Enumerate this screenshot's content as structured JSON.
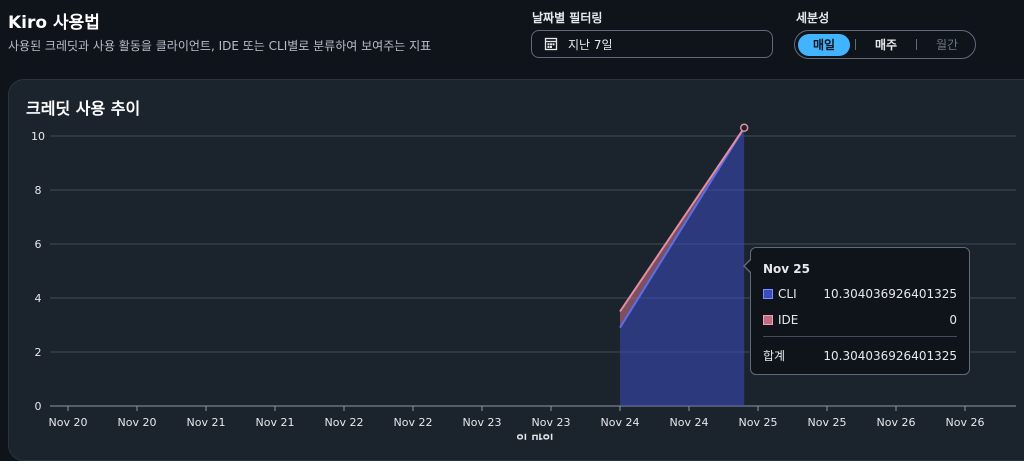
{
  "header": {
    "title": "Kiro 사용법",
    "subtitle": "사용된 크레딧과 사용 활동을 클라이언트, IDE 또는 CLI별로 분류하여 보여주는 지표"
  },
  "date_filter": {
    "label": "날짜별 필터링",
    "value": "지난 7일"
  },
  "granularity": {
    "label": "세분성",
    "options": [
      "매일",
      "매주",
      "월간"
    ],
    "selected": "매일"
  },
  "panel": {
    "title": "크레딧 사용 추이"
  },
  "colors": {
    "cli": "#3b4cc0",
    "ide": "#c06d82",
    "accent": "#42b4ff"
  },
  "tooltip": {
    "date": "Nov 25",
    "rows": [
      {
        "name": "CLI",
        "value": "10.304036926401325"
      },
      {
        "name": "IDE",
        "value": "0"
      }
    ],
    "total_label": "합계",
    "total_value": "10.304036926401325"
  },
  "chart_data": {
    "type": "area",
    "x_tick_labels": [
      "Nov 20",
      "Nov 20",
      "Nov 21",
      "Nov 21",
      "Nov 22",
      "Nov 22",
      "Nov 23",
      "Nov 23",
      "Nov 24",
      "Nov 24",
      "Nov 25",
      "Nov 25",
      "Nov 26",
      "Nov 26"
    ],
    "xlabel": "일 마일",
    "ylim": [
      0,
      10
    ],
    "y_ticks": [
      0,
      2,
      4,
      6,
      8,
      10
    ],
    "grid": true,
    "series": [
      {
        "name": "CLI",
        "x_index": [
          8,
          9.8
        ],
        "values": [
          2.9,
          10.304036926401325
        ]
      },
      {
        "name": "IDE",
        "x_index": [
          8,
          9.8
        ],
        "values": [
          0.6,
          0
        ]
      }
    ]
  }
}
